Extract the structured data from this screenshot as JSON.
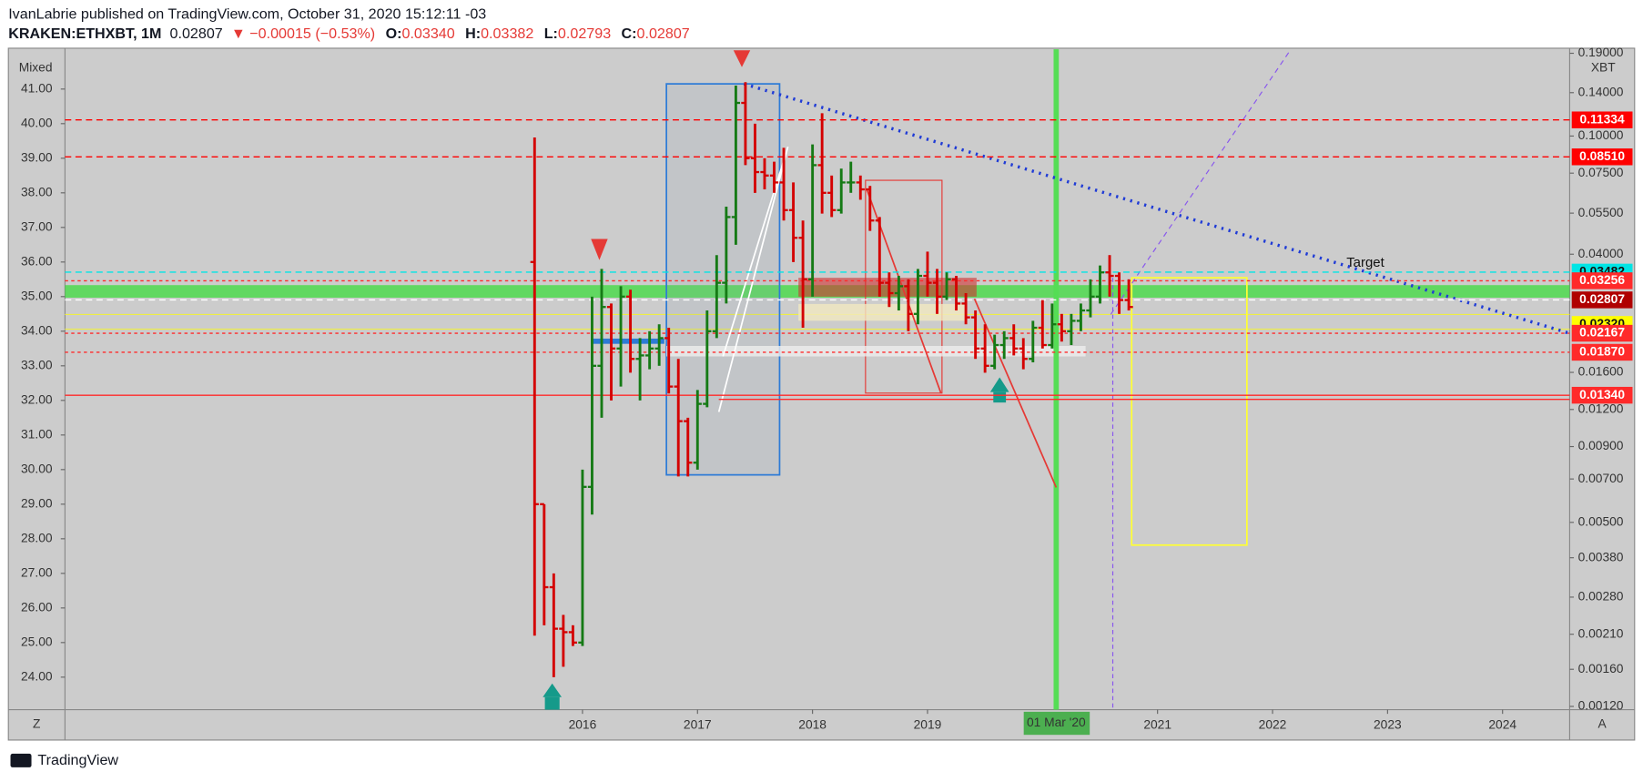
{
  "header": {
    "publisher": "IvanLabrie published on TradingView.com, October 31, 2020 15:12:11 -03",
    "symbol": "KRAKEN:ETHXBT, 1M",
    "last": "0.02807",
    "change": "▼ −0.00015 (−0.53%)",
    "o_label": "O:",
    "o": "0.03340",
    "h_label": "H:",
    "h": "0.03382",
    "l_label": "L:",
    "l": "0.02793",
    "c_label": "C:",
    "c": "0.02807"
  },
  "chart_data": {
    "type": "ohlc",
    "left_axis_label": "Mixed",
    "right_axis_label": "XBT",
    "annotation": "Target",
    "cursor_label": "01 Mar '20",
    "left_button": "Z",
    "right_button": "A",
    "footer": "TradingView",
    "up_color": "#157a15",
    "down_color": "#d40000",
    "grid": false,
    "x": [
      "2015-08",
      "2015-09",
      "2015-10",
      "2015-11",
      "2015-12",
      "2016-01",
      "2016-02",
      "2016-03",
      "2016-04",
      "2016-05",
      "2016-06",
      "2016-07",
      "2016-08",
      "2016-09",
      "2016-10",
      "2016-11",
      "2016-12",
      "2017-01",
      "2017-02",
      "2017-03",
      "2017-04",
      "2017-05",
      "2017-06",
      "2017-07",
      "2017-08",
      "2017-09",
      "2017-10",
      "2017-11",
      "2017-12",
      "2018-01",
      "2018-02",
      "2018-03",
      "2018-04",
      "2018-05",
      "2018-06",
      "2018-07",
      "2018-08",
      "2018-09",
      "2018-10",
      "2018-11",
      "2018-12",
      "2019-01",
      "2019-02",
      "2019-03",
      "2019-04",
      "2019-05",
      "2019-06",
      "2019-07",
      "2019-08",
      "2019-09",
      "2019-10",
      "2019-11",
      "2019-12",
      "2020-01",
      "2020-02",
      "2020-03",
      "2020-04",
      "2020-05",
      "2020-06",
      "2020-07",
      "2020-08",
      "2020-09",
      "2020-10"
    ],
    "open": [
      36.0,
      29.0,
      26.6,
      25.4,
      25.3,
      25.0,
      29.5,
      33.0,
      34.7,
      33.5,
      35.0,
      33.2,
      33.3,
      33.5,
      33.8,
      32.4,
      31.4,
      30.2,
      31.9,
      34.0,
      35.4,
      37.3,
      40.6,
      39.0,
      38.6,
      38.5,
      38.3,
      37.5,
      36.7,
      35.5,
      38.8,
      38.0,
      37.5,
      38.3,
      38.3,
      38.1,
      37.2,
      35.4,
      35.1,
      35.3,
      34.5,
      35.6,
      35.4,
      35.0,
      35.5,
      34.8,
      34.4,
      33.5,
      33.0,
      33.6,
      33.8,
      33.5,
      33.2,
      34.1,
      33.6,
      34.2,
      34.0,
      34.3,
      34.6,
      35.0,
      35.7,
      35.6,
      34.9
    ],
    "high": [
      39.6,
      29.0,
      27.0,
      25.8,
      25.5,
      30.0,
      35.0,
      35.8,
      34.8,
      35.3,
      35.2,
      33.8,
      34.0,
      34.2,
      34.1,
      33.2,
      31.5,
      32.3,
      34.6,
      36.2,
      37.6,
      41.1,
      41.2,
      40.0,
      39.0,
      38.9,
      39.3,
      38.3,
      37.2,
      39.4,
      40.3,
      38.5,
      38.7,
      38.9,
      38.5,
      38.2,
      37.3,
      35.7,
      35.6,
      35.5,
      35.8,
      36.3,
      35.8,
      35.7,
      35.6,
      35.1,
      34.6,
      34.2,
      33.9,
      34.0,
      34.2,
      33.8,
      34.3,
      34.9,
      34.8,
      34.5,
      34.5,
      34.8,
      35.5,
      35.9,
      36.2,
      35.7,
      35.5
    ],
    "low": [
      25.2,
      25.5,
      24.0,
      24.3,
      24.9,
      24.9,
      28.7,
      31.5,
      32.0,
      32.4,
      32.8,
      32.0,
      32.9,
      33.0,
      32.2,
      29.8,
      29.8,
      30.0,
      31.8,
      33.8,
      34.8,
      36.5,
      38.8,
      38.0,
      38.1,
      38.0,
      37.2,
      36.0,
      34.1,
      35.0,
      37.4,
      37.3,
      37.4,
      38.0,
      37.8,
      36.9,
      35.0,
      34.7,
      34.6,
      34.0,
      34.2,
      35.0,
      34.5,
      34.9,
      34.6,
      34.2,
      33.2,
      32.8,
      32.9,
      33.2,
      33.3,
      32.9,
      33.1,
      33.5,
      33.5,
      33.7,
      33.6,
      34.0,
      34.4,
      34.8,
      35.0,
      34.5,
      34.6
    ],
    "close": [
      29.0,
      26.6,
      25.4,
      25.3,
      25.0,
      29.5,
      33.0,
      34.7,
      33.5,
      35.0,
      33.2,
      33.3,
      33.5,
      33.8,
      32.4,
      31.4,
      30.2,
      31.9,
      34.0,
      35.4,
      37.3,
      40.6,
      39.0,
      38.6,
      38.5,
      38.3,
      37.5,
      36.7,
      35.5,
      38.8,
      38.0,
      37.5,
      38.3,
      38.3,
      38.1,
      37.2,
      35.4,
      35.1,
      35.3,
      34.5,
      35.6,
      35.4,
      35.0,
      35.5,
      34.8,
      34.4,
      33.5,
      33.0,
      33.6,
      33.8,
      33.5,
      33.2,
      34.1,
      33.6,
      34.2,
      34.0,
      34.3,
      34.6,
      35.0,
      35.7,
      35.6,
      34.9,
      34.7
    ],
    "xlim": [
      "2011-07",
      "2024-08"
    ],
    "xticks": [
      {
        "value": "2016-01",
        "label": "2016"
      },
      {
        "value": "2017-01",
        "label": "2017"
      },
      {
        "value": "2018-01",
        "label": "2018"
      },
      {
        "value": "2019-01",
        "label": "2019"
      },
      {
        "value": "2021-01",
        "label": "2021"
      },
      {
        "value": "2022-01",
        "label": "2022"
      },
      {
        "value": "2023-01",
        "label": "2023"
      },
      {
        "value": "2024-01",
        "label": "2024"
      }
    ],
    "ylim": [
      23.06,
      42.15
    ],
    "yticks": [
      {
        "value": 24,
        "label": "24.00"
      },
      {
        "value": 25,
        "label": "25.00"
      },
      {
        "value": 26,
        "label": "26.00"
      },
      {
        "value": 27,
        "label": "27.00"
      },
      {
        "value": 28,
        "label": "28.00"
      },
      {
        "value": 29,
        "label": "29.00"
      },
      {
        "value": 30,
        "label": "30.00"
      },
      {
        "value": 31,
        "label": "31.00"
      },
      {
        "value": 32,
        "label": "32.00"
      },
      {
        "value": 33,
        "label": "33.00"
      },
      {
        "value": 34,
        "label": "34.00"
      },
      {
        "value": 35,
        "label": "35.00"
      },
      {
        "value": 36,
        "label": "36.00"
      },
      {
        "value": 37,
        "label": "37.00"
      },
      {
        "value": 38,
        "label": "38.00"
      },
      {
        "value": 39,
        "label": "39.00"
      },
      {
        "value": 40,
        "label": "40.00"
      },
      {
        "value": 41,
        "label": "41.00"
      }
    ],
    "y2_log": true,
    "y2lim": [
      0.00117,
      0.196
    ],
    "y2ticks": [
      {
        "value": 0.19,
        "label": "0.19000"
      },
      {
        "value": 0.14,
        "label": "0.14000"
      },
      {
        "value": 0.1,
        "label": "0.10000"
      },
      {
        "value": 0.075,
        "label": "0.07500"
      },
      {
        "value": 0.055,
        "label": "0.05500"
      },
      {
        "value": 0.04,
        "label": "0.04000"
      },
      {
        "value": 0.016,
        "label": "0.01600"
      },
      {
        "value": 0.012,
        "label": "0.01200"
      },
      {
        "value": 0.009,
        "label": "0.00900"
      },
      {
        "value": 0.007,
        "label": "0.00700"
      },
      {
        "value": 0.005,
        "label": "0.00500"
      },
      {
        "value": 0.0038,
        "label": "0.00380"
      },
      {
        "value": 0.0028,
        "label": "0.00280"
      },
      {
        "value": 0.0021,
        "label": "0.00210"
      },
      {
        "value": 0.0016,
        "label": "0.00160"
      },
      {
        "value": 0.0012,
        "label": "0.00120"
      }
    ],
    "price_levels": [
      {
        "value": 0.11334,
        "color": "#ff0000",
        "line": "dashed"
      },
      {
        "value": 0.0851,
        "label": "0.08510",
        "color": "#ff0000",
        "line": "dashed"
      },
      {
        "value": 0.03482,
        "color": "#00e5e5",
        "line": "dashed"
      },
      {
        "value": 0.03256,
        "color": "#ff2a2a",
        "line": "dotted"
      },
      {
        "value": 0.02807,
        "color": "#b00000",
        "line": "white"
      },
      {
        "value": 0.0232,
        "label": "0.02320",
        "color": "#ffff00",
        "line": "none"
      },
      {
        "value": 0.02167,
        "color": "#ff2a2a",
        "line": "dotted"
      },
      {
        "value": 0.0187,
        "label": "0.01870",
        "color": "#ff2a2a",
        "line": "dotted"
      },
      {
        "value": 0.0134,
        "label": "0.01340",
        "color": "#ff2a2a",
        "line": "solid"
      }
    ]
  }
}
